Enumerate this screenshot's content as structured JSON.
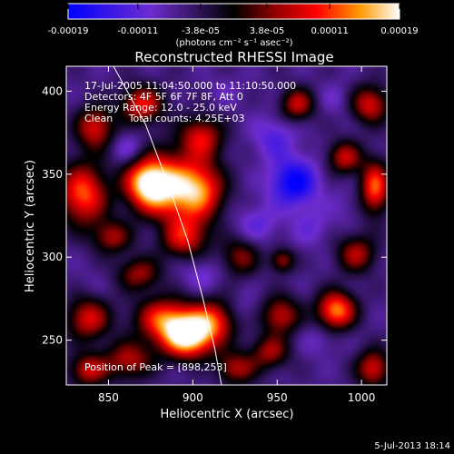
{
  "chart_data": {
    "type": "heatmap",
    "title": "Reconstructed RHESSI Image",
    "xlabel": "Heliocentric X (arcsec)",
    "ylabel": "Heliocentric Y (arcsec)",
    "xlim": [
      825,
      1015
    ],
    "ylim": [
      223,
      415
    ],
    "x_ticks": [
      850,
      900,
      950,
      1000
    ],
    "y_ticks": [
      250,
      300,
      350,
      400
    ],
    "colorbar": {
      "ticks": [
        "-0.00019",
        "-0.00011",
        "-3.8e-05",
        "3.8e-05",
        "0.00011",
        "0.00019"
      ],
      "tick_values": [
        -0.00019,
        -0.00011,
        -3.8e-05,
        3.8e-05,
        0.00011,
        0.00019
      ],
      "range": [
        -0.00019,
        0.00019
      ],
      "units": "(photons cm⁻² s⁻¹ asec⁻²)"
    },
    "annotations": [
      "17-Jul-2005 11:04:50.000 to 11:10:50.000",
      "Detectors: 4F 5F 6F 7F 8F, Att 0",
      "Energy Range: 12.0 - 25.0 keV",
      "Clean     Total counts: 4.25E+03"
    ],
    "peak_label": "Position of Peak = [898,253]",
    "peak": [
      898,
      253
    ],
    "timestamp": "5-Jul-2013 18:14",
    "limb_curve": [
      [
        853,
        415
      ],
      [
        872,
        380
      ],
      [
        885,
        345
      ],
      [
        897,
        310
      ],
      [
        906,
        275
      ],
      [
        913,
        245
      ],
      [
        917,
        223
      ]
    ],
    "blobs": [
      {
        "x": 897,
        "y": 252,
        "v": 0.00019,
        "sx": 11,
        "sy": 9
      },
      {
        "x": 883,
        "y": 263,
        "v": 0.0001,
        "sx": 12,
        "sy": 9
      },
      {
        "x": 912,
        "y": 262,
        "v": 8e-05,
        "sx": 10,
        "sy": 9
      },
      {
        "x": 885,
        "y": 342,
        "v": 0.00014,
        "sx": 13,
        "sy": 14
      },
      {
        "x": 905,
        "y": 340,
        "v": 0.0001,
        "sx": 10,
        "sy": 12
      },
      {
        "x": 872,
        "y": 345,
        "v": 0.00011,
        "sx": 9,
        "sy": 10
      },
      {
        "x": 895,
        "y": 312,
        "v": 8e-05,
        "sx": 10,
        "sy": 9
      },
      {
        "x": 905,
        "y": 372,
        "v": 8e-05,
        "sx": 9,
        "sy": 9
      },
      {
        "x": 870,
        "y": 392,
        "v": 9e-05,
        "sx": 9,
        "sy": 8
      },
      {
        "x": 842,
        "y": 378,
        "v": 8e-05,
        "sx": 8,
        "sy": 9
      },
      {
        "x": 835,
        "y": 338,
        "v": 0.00012,
        "sx": 10,
        "sy": 13
      },
      {
        "x": 852,
        "y": 312,
        "v": 5e-05,
        "sx": 8,
        "sy": 7
      },
      {
        "x": 868,
        "y": 290,
        "v": 5e-05,
        "sx": 9,
        "sy": 7
      },
      {
        "x": 838,
        "y": 263,
        "v": 8e-05,
        "sx": 9,
        "sy": 9
      },
      {
        "x": 862,
        "y": 238,
        "v": 6e-05,
        "sx": 10,
        "sy": 8
      },
      {
        "x": 838,
        "y": 232,
        "v": 7e-05,
        "sx": 8,
        "sy": 7
      },
      {
        "x": 925,
        "y": 233,
        "v": 6e-05,
        "sx": 9,
        "sy": 7
      },
      {
        "x": 946,
        "y": 243,
        "v": 5e-05,
        "sx": 8,
        "sy": 7
      },
      {
        "x": 952,
        "y": 265,
        "v": 7e-05,
        "sx": 8,
        "sy": 8
      },
      {
        "x": 985,
        "y": 268,
        "v": 0.00014,
        "sx": 8,
        "sy": 8
      },
      {
        "x": 1007,
        "y": 233,
        "v": 8e-05,
        "sx": 7,
        "sy": 8
      },
      {
        "x": 997,
        "y": 302,
        "v": 6e-05,
        "sx": 8,
        "sy": 8
      },
      {
        "x": 1008,
        "y": 342,
        "v": 0.00012,
        "sx": 6,
        "sy": 11
      },
      {
        "x": 990,
        "y": 360,
        "v": 7e-05,
        "sx": 7,
        "sy": 7
      },
      {
        "x": 1005,
        "y": 392,
        "v": 8e-05,
        "sx": 8,
        "sy": 8
      },
      {
        "x": 962,
        "y": 392,
        "v": 7e-05,
        "sx": 7,
        "sy": 7
      },
      {
        "x": 953,
        "y": 298,
        "v": 5e-05,
        "sx": 5,
        "sy": 5
      },
      {
        "x": 928,
        "y": 300,
        "v": 4e-05,
        "sx": 8,
        "sy": 8
      },
      {
        "x": 960,
        "y": 345,
        "v": -0.00019,
        "sx": 10,
        "sy": 10
      },
      {
        "x": 948,
        "y": 372,
        "v": -0.00012,
        "sx": 9,
        "sy": 9
      },
      {
        "x": 938,
        "y": 320,
        "v": -0.00011,
        "sx": 9,
        "sy": 8
      },
      {
        "x": 970,
        "y": 318,
        "v": -0.0001,
        "sx": 8,
        "sy": 8
      },
      {
        "x": 905,
        "y": 290,
        "v": -0.0001,
        "sx": 9,
        "sy": 8
      },
      {
        "x": 862,
        "y": 365,
        "v": -0.00011,
        "sx": 7,
        "sy": 7
      },
      {
        "x": 880,
        "y": 318,
        "v": -8e-05,
        "sx": 7,
        "sy": 7
      },
      {
        "x": 975,
        "y": 250,
        "v": -9e-05,
        "sx": 8,
        "sy": 7
      },
      {
        "x": 930,
        "y": 268,
        "v": -9e-05,
        "sx": 7,
        "sy": 7
      },
      {
        "x": 920,
        "y": 400,
        "v": -8e-05,
        "sx": 8,
        "sy": 7
      },
      {
        "x": 985,
        "y": 395,
        "v": -9e-05,
        "sx": 7,
        "sy": 7
      },
      {
        "x": 840,
        "y": 285,
        "v": -7e-05,
        "sx": 7,
        "sy": 7
      },
      {
        "x": 990,
        "y": 330,
        "v": -8e-05,
        "sx": 7,
        "sy": 8
      },
      {
        "x": 845,
        "y": 245,
        "v": -6e-05,
        "sx": 6,
        "sy": 6
      },
      {
        "x": 912,
        "y": 232,
        "v": -8e-05,
        "sx": 6,
        "sy": 6
      }
    ]
  }
}
